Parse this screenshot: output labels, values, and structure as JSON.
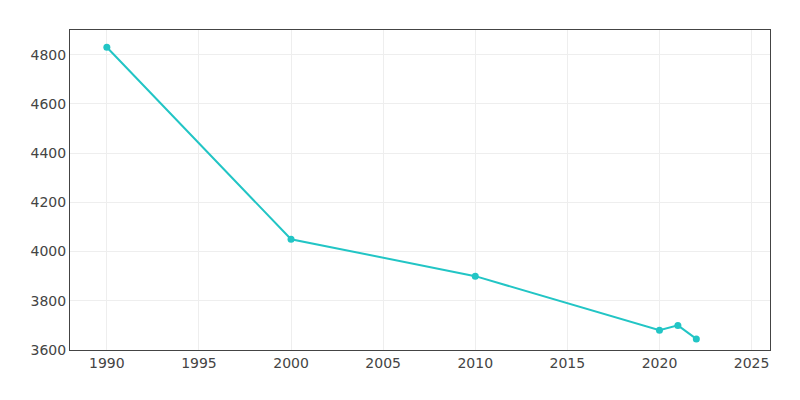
{
  "chart_data": {
    "type": "line",
    "x": [
      1990,
      2000,
      2010,
      2020,
      2021,
      2022
    ],
    "values": [
      4830,
      4050,
      3900,
      3680,
      3700,
      3645
    ],
    "color": "#22C5C5",
    "marker": "circle",
    "xlim": [
      1988,
      2026
    ],
    "ylim": [
      3600,
      4900
    ],
    "xticks": [
      1990,
      1995,
      2000,
      2005,
      2010,
      2015,
      2020,
      2025
    ],
    "yticks": [
      3600,
      3800,
      4000,
      4200,
      4400,
      4600,
      4800
    ],
    "grid": true
  }
}
